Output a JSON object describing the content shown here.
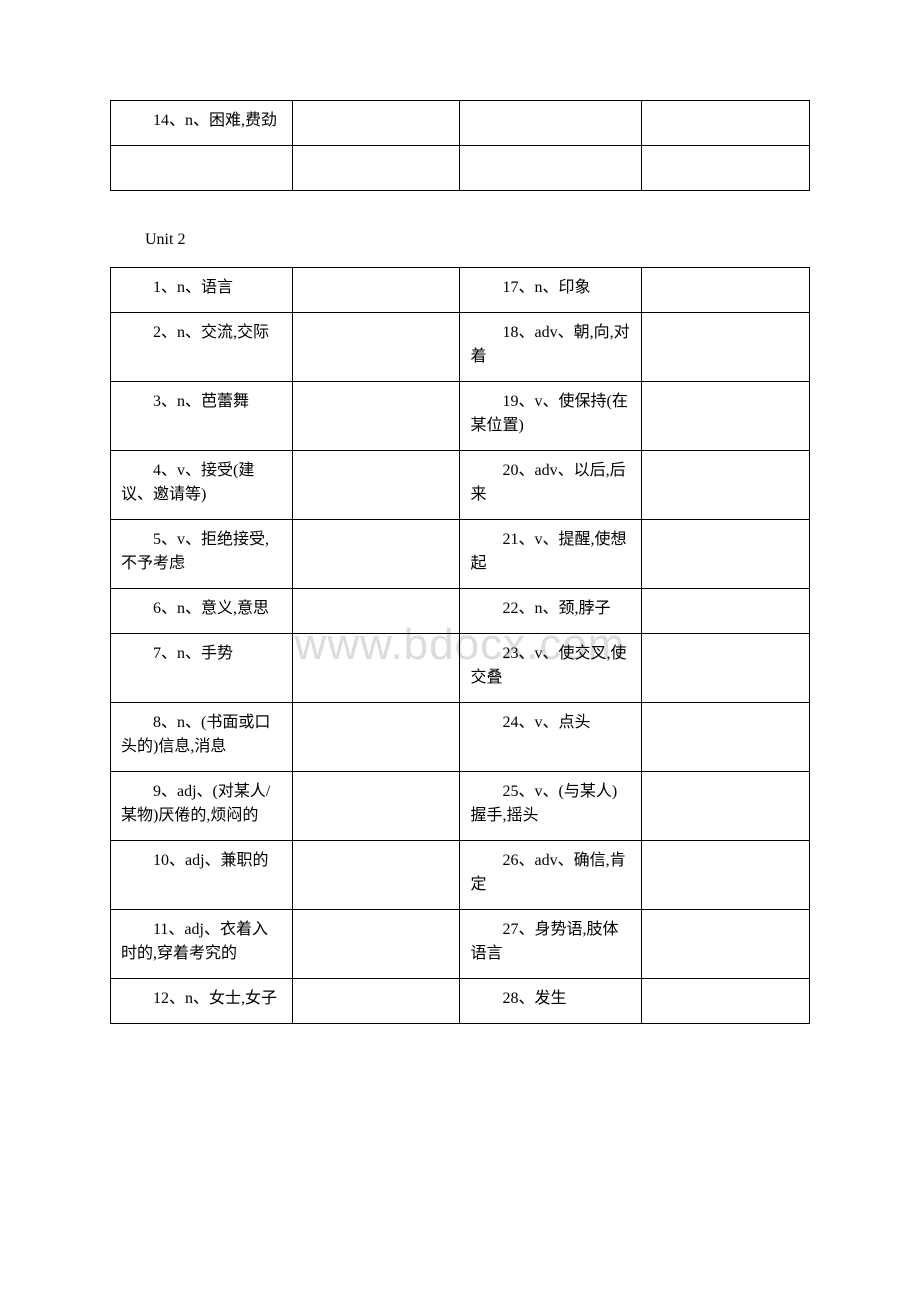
{
  "watermark": "www.bdocx.com",
  "table1_rows": [
    [
      "14、n、困难,费劲",
      "",
      "",
      ""
    ],
    [
      "",
      "",
      "",
      ""
    ]
  ],
  "unit_label": "Unit 2",
  "table2_rows": [
    [
      "1、n、语言",
      "",
      "17、n、印象",
      ""
    ],
    [
      "2、n、交流,交际",
      "",
      "18、adv、朝,向,对着",
      ""
    ],
    [
      "3、n、芭蕾舞",
      "",
      "19、v、使保持(在某位置)",
      ""
    ],
    [
      "4、v、接受(建议、邀请等)",
      "",
      "20、adv、以后,后来",
      ""
    ],
    [
      "5、v、拒绝接受,不予考虑",
      "",
      "21、v、提醒,使想起",
      ""
    ],
    [
      "6、n、意义,意思",
      "",
      "22、n、颈,脖子",
      ""
    ],
    [
      "7、n、手势",
      "",
      "23、v、使交叉,使交叠",
      ""
    ],
    [
      "8、n、(书面或口头的)信息,消息",
      "",
      "24、v、点头",
      ""
    ],
    [
      "9、adj、(对某人/某物)厌倦的,烦闷的",
      "",
      "25、v、(与某人)握手,摇头",
      ""
    ],
    [
      "10、adj、兼职的",
      "",
      "26、adv、确信,肯定",
      ""
    ],
    [
      "11、adj、衣着入时的,穿着考究的",
      "",
      "27、身势语,肢体语言",
      ""
    ],
    [
      "12、n、女士,女子",
      "",
      "28、发生",
      ""
    ]
  ]
}
